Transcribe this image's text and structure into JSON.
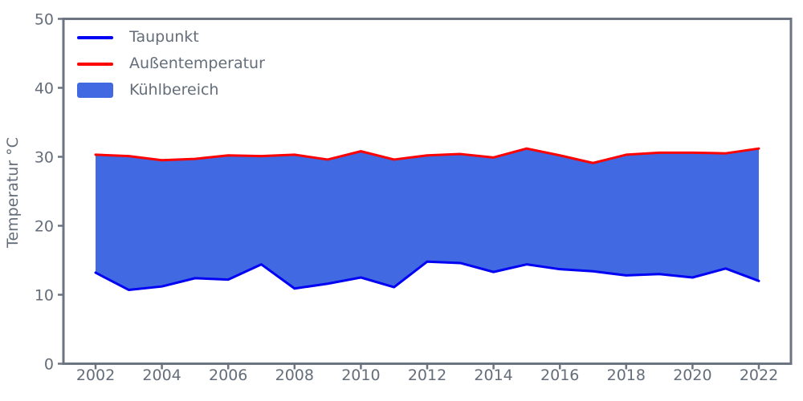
{
  "figure": {
    "ylabel": "Temperatur °C",
    "legend": [
      {
        "label": "Taupunkt",
        "type": "line",
        "color": "#0000f5"
      },
      {
        "label": "Außentemperatur",
        "type": "line",
        "color": "#fd0000"
      },
      {
        "label": "Kühlbereich",
        "type": "patch",
        "color": "#4169e1"
      }
    ]
  },
  "chart_data": {
    "type": "area",
    "title": "",
    "xlabel": "",
    "ylabel": "Temperatur °C",
    "x": [
      2002,
      2003,
      2004,
      2005,
      2006,
      2007,
      2008,
      2009,
      2010,
      2011,
      2012,
      2013,
      2014,
      2015,
      2016,
      2017,
      2018,
      2019,
      2020,
      2021,
      2022
    ],
    "series": [
      {
        "name": "Taupunkt",
        "color": "#0000f5",
        "values": [
          13.2,
          10.7,
          11.2,
          12.4,
          12.2,
          14.4,
          10.9,
          11.6,
          12.5,
          11.1,
          14.8,
          14.6,
          13.3,
          14.4,
          13.7,
          13.4,
          12.8,
          13.0,
          12.5,
          13.8,
          12.0
        ]
      },
      {
        "name": "Außentemperatur",
        "color": "#fd0000",
        "values": [
          30.3,
          30.1,
          29.5,
          29.7,
          30.2,
          30.1,
          30.3,
          29.6,
          30.8,
          29.6,
          30.2,
          30.4,
          29.9,
          31.2,
          30.2,
          29.1,
          30.3,
          30.6,
          30.6,
          30.5,
          31.2
        ]
      }
    ],
    "fill_between": {
      "label": "Kühlbereich",
      "lower": "Taupunkt",
      "upper": "Außentemperatur",
      "color": "#4169e1"
    },
    "ylim": [
      0,
      50
    ],
    "x_ticks": [
      2002,
      2004,
      2006,
      2008,
      2010,
      2012,
      2014,
      2016,
      2018,
      2020,
      2022
    ],
    "y_ticks": [
      0,
      10,
      20,
      30,
      40,
      50
    ],
    "grid": false,
    "legend_position": "upper-left",
    "axis_color": "#6b7480",
    "text_color": "#646e7a"
  }
}
